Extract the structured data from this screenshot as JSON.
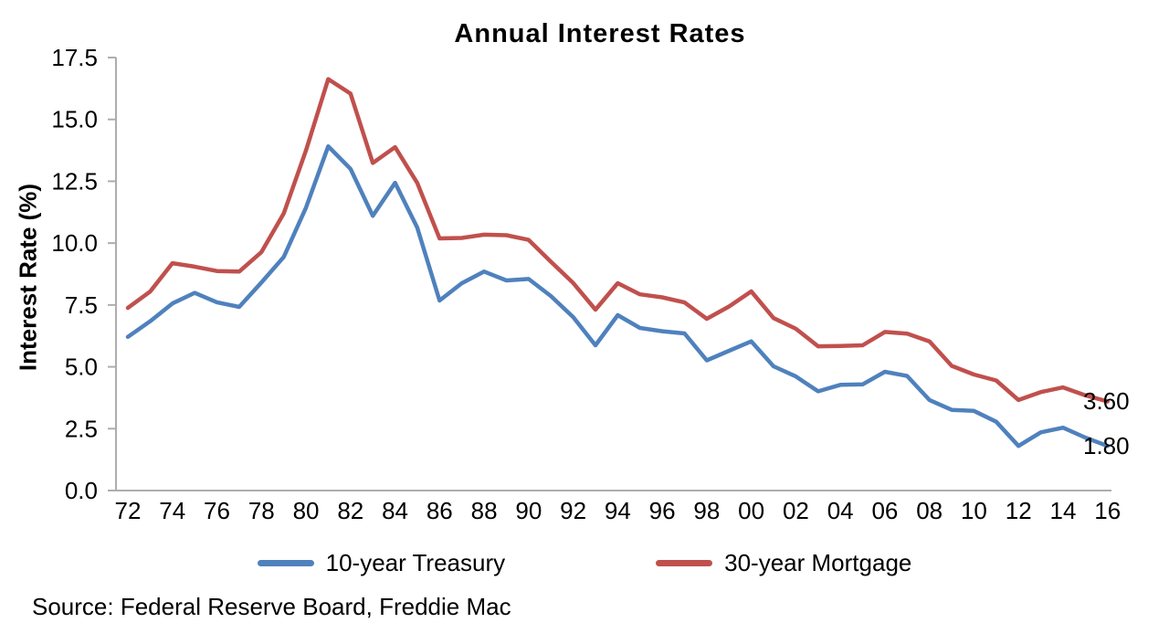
{
  "title": "Annual Interest Rates",
  "y_axis_title": "Interest Rate (%)",
  "source_note": "Source: Federal Reserve Board, Freddie Mac",
  "colors": {
    "treasury_line": "#4F81BD",
    "mortgage_line": "#C0504D",
    "axis": "#ADADAD",
    "text": "#000000",
    "background": "#FFFFFF"
  },
  "end_labels": [
    {
      "text": "3.60",
      "y_value": 3.6,
      "series": "30-year Mortgage"
    },
    {
      "text": "1.80",
      "y_value": 1.8,
      "series": "10-year Treasury"
    }
  ],
  "chart_data": {
    "type": "line",
    "title": "Annual Interest Rates",
    "xlabel": "",
    "ylabel": "Interest Rate (%)",
    "grid": false,
    "legend_position": "bottom",
    "ylim": [
      0,
      17.5
    ],
    "y_ticks": [
      0,
      2.5,
      5,
      7.5,
      10,
      12.5,
      15,
      17.5
    ],
    "y_tick_labels": [
      "0.0",
      "2.5",
      "5.0",
      "7.5",
      "10.0",
      "12.5",
      "15.0",
      "17.5"
    ],
    "x": [
      1972,
      1973,
      1974,
      1975,
      1976,
      1977,
      1978,
      1979,
      1980,
      1981,
      1982,
      1983,
      1984,
      1985,
      1986,
      1987,
      1988,
      1989,
      1990,
      1991,
      1992,
      1993,
      1994,
      1995,
      1996,
      1997,
      1998,
      1999,
      2000,
      2001,
      2002,
      2003,
      2004,
      2005,
      2006,
      2007,
      2008,
      2009,
      2010,
      2011,
      2012,
      2013,
      2014,
      2015,
      2016
    ],
    "x_tick_years": [
      1972,
      1974,
      1976,
      1978,
      1980,
      1982,
      1984,
      1986,
      1988,
      1990,
      1992,
      1994,
      1996,
      1998,
      2000,
      2002,
      2004,
      2006,
      2008,
      2010,
      2012,
      2014,
      2016
    ],
    "x_tick_labels": [
      "72",
      "74",
      "76",
      "78",
      "80",
      "82",
      "84",
      "86",
      "88",
      "90",
      "92",
      "94",
      "96",
      "98",
      "00",
      "02",
      "04",
      "06",
      "08",
      "10",
      "12",
      "14",
      "16"
    ],
    "series": [
      {
        "name": "10-year Treasury",
        "color": "#4F81BD",
        "values": [
          6.21,
          6.84,
          7.56,
          7.99,
          7.61,
          7.42,
          8.41,
          9.44,
          11.43,
          13.91,
          13.0,
          11.1,
          12.44,
          10.62,
          7.68,
          8.38,
          8.85,
          8.49,
          8.55,
          7.86,
          7.01,
          5.87,
          7.09,
          6.57,
          6.44,
          6.35,
          5.26,
          5.65,
          6.03,
          5.02,
          4.61,
          4.01,
          4.27,
          4.29,
          4.8,
          4.63,
          3.66,
          3.26,
          3.22,
          2.78,
          1.8,
          2.35,
          2.54,
          2.14,
          1.8
        ]
      },
      {
        "name": "30-year Mortgage",
        "color": "#C0504D",
        "values": [
          7.38,
          8.04,
          9.19,
          9.05,
          8.87,
          8.85,
          9.64,
          11.2,
          13.74,
          16.63,
          16.04,
          13.24,
          13.88,
          12.43,
          10.19,
          10.21,
          10.34,
          10.32,
          10.13,
          9.25,
          8.39,
          7.31,
          8.38,
          7.93,
          7.81,
          7.6,
          6.94,
          7.44,
          8.05,
          6.97,
          6.54,
          5.83,
          5.84,
          5.87,
          6.41,
          6.34,
          6.03,
          5.04,
          4.69,
          4.45,
          3.66,
          3.98,
          4.17,
          3.85,
          3.6
        ]
      }
    ]
  }
}
